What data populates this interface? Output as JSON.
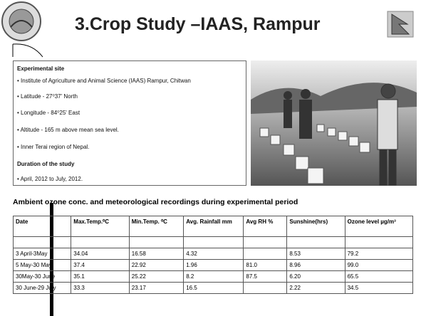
{
  "header": {
    "title": "3.Crop Study –IAAS, Rampur"
  },
  "site": {
    "heading": "Experimental site",
    "items": [
      "Institute of Agriculture and Animal Science (IAAS) Rampur, Chitwan",
      "Latitude - 27⁰37' North",
      "Longitude - 84⁰25' East",
      "Altitude - 165 m above mean sea level.",
      "Inner Terai region of Nepal."
    ]
  },
  "duration": {
    "heading": "Duration of the study",
    "items": [
      "April, 2012 to July, 2012."
    ]
  },
  "table": {
    "caption": "Ambient ozone conc. and meteorological recordings during experimental period",
    "columns": [
      "Date",
      "Max.Temp.⁰C",
      "Min.Temp. ⁰C",
      "Avg. Rainfall mm",
      "Avg RH %",
      "Sunshine(hrs)",
      "Ozone level µg/m³"
    ],
    "rows": [
      [
        "3 April-3May",
        "34.04",
        "16.58",
        "4.32",
        null,
        "8.53",
        "79.2"
      ],
      [
        "5 May-30 May",
        "37.4",
        "22.92",
        "1.96",
        "81.0",
        "8.96",
        "99.0"
      ],
      [
        "30May-30 June",
        "35.1",
        "25.22",
        "8.2",
        "87.5",
        "6.20",
        "65.5"
      ],
      [
        "30 June-29 July",
        "33.3",
        "23.17",
        "16.5",
        null,
        "2.22",
        "34.5"
      ]
    ]
  }
}
